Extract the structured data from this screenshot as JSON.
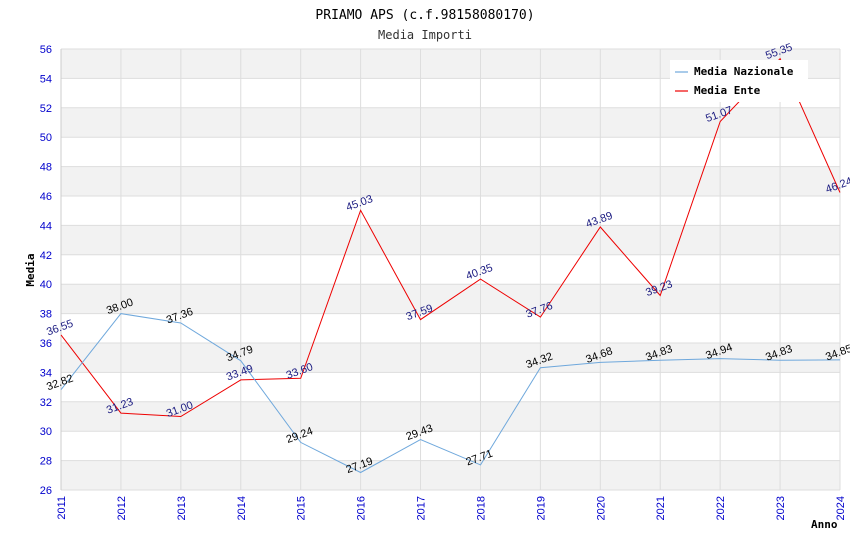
{
  "chart_data": {
    "type": "line",
    "title": "PRIAMO APS (c.f.98158080170)",
    "subtitle": "Media Importi",
    "xlabel": "Anno",
    "ylabel": "Media",
    "ylim": [
      26,
      56
    ],
    "ytick_step": 2,
    "categories": [
      "2011",
      "2012",
      "2013",
      "2014",
      "2015",
      "2016",
      "2017",
      "2018",
      "2019",
      "2020",
      "2021",
      "2022",
      "2023",
      "2024"
    ],
    "series": [
      {
        "name": "Media Nazionale",
        "color": "#6fa8dc",
        "values": [
          32.82,
          38.0,
          37.36,
          34.79,
          29.24,
          27.19,
          29.43,
          27.71,
          34.32,
          34.68,
          34.83,
          34.94,
          34.83,
          34.85
        ],
        "labels": [
          "32.82",
          "38.00",
          "37.36",
          "34.79",
          "29.24",
          "27.19",
          "29.43",
          "27.71",
          "34.32",
          "34.68",
          "34.83",
          "34.94",
          "34.83",
          "34.85"
        ]
      },
      {
        "name": "Media Ente",
        "color": "#ee0000",
        "values": [
          36.55,
          31.23,
          31.0,
          33.49,
          33.6,
          45.03,
          37.59,
          40.35,
          37.76,
          43.89,
          39.23,
          51.07,
          55.35,
          46.24
        ],
        "labels": [
          "36.55",
          "31.23",
          "31.00",
          "33.49",
          "33.60",
          "45.03",
          "37.59",
          "40.35",
          "37.76",
          "43.89",
          "39.23",
          "51.07",
          "55.35",
          "46.24"
        ]
      }
    ],
    "legend_position": "top-right",
    "grid": true
  }
}
